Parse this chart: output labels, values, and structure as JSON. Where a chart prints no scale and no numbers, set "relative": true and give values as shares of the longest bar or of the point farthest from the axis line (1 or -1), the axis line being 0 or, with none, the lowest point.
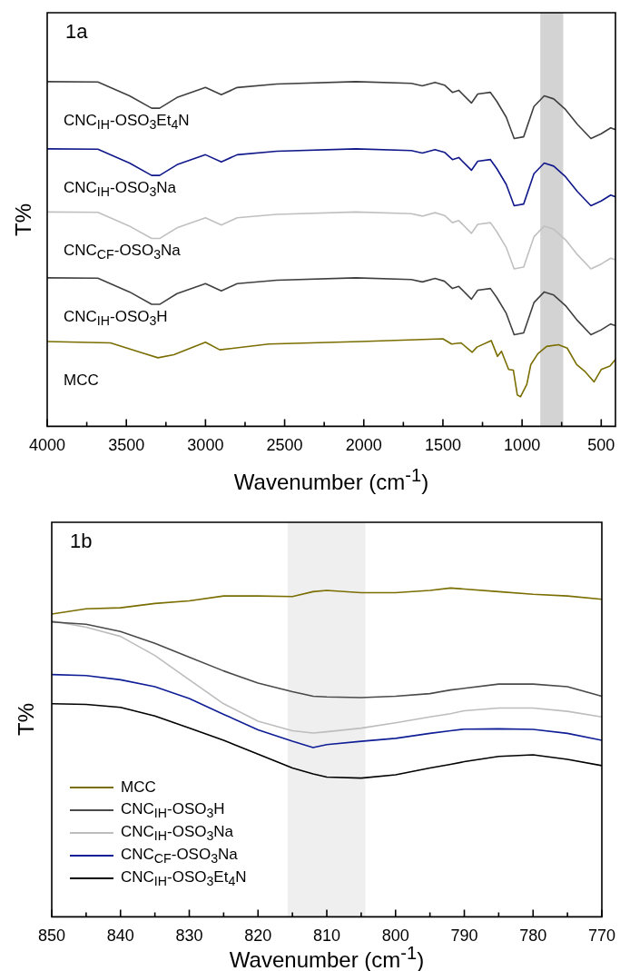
{
  "chart_data": [
    {
      "type": "line",
      "title": "1a",
      "xlabel": "Wavenumber (cm$^{-1}$)",
      "ylabel": "T%",
      "relative": true,
      "legend": false,
      "xlim": [
        4000,
        410
      ],
      "xticks": [
        4000,
        {
          "value": 3750,
          "label": null
        },
        3500,
        {
          "value": 3250,
          "label": null
        },
        3000,
        {
          "value": 2750,
          "label": null
        },
        2500,
        {
          "value": 2250,
          "label": null
        },
        2000,
        {
          "value": 1750,
          "label": null
        },
        1500,
        {
          "value": 1250,
          "label": null
        },
        1000,
        {
          "value": 750,
          "label": null
        },
        500
      ],
      "bands": [
        {
          "axis": "x",
          "from": 885,
          "to": 740,
          "color": "#d3d3d3"
        }
      ],
      "series": [
        {
          "name": "CNC$_{IH}$-OSO$_{3}$Et$_{4}$N",
          "color": "#404040",
          "x": [
            4000,
            3680,
            3480,
            3340,
            3290,
            3180,
            3000,
            2900,
            2800,
            2550,
            2050,
            1700,
            1630,
            1550,
            1490,
            1440,
            1400,
            1320,
            1280,
            1200,
            1160,
            1100,
            1050,
            990,
            925,
            860,
            800,
            725,
            650,
            565,
            500,
            440,
            410
          ],
          "values": [
            1.0,
            0.999,
            0.959,
            0.923,
            0.923,
            0.954,
            0.983,
            0.962,
            0.983,
            0.993,
            1.0,
            0.995,
            0.988,
            0.998,
            0.99,
            0.969,
            0.975,
            0.938,
            0.964,
            0.969,
            0.943,
            0.897,
            0.835,
            0.84,
            0.928,
            0.959,
            0.95,
            0.919,
            0.876,
            0.835,
            0.849,
            0.866,
            0.861
          ]
        },
        {
          "name": "CNC$_{IH}$-OSO$_{3}$Na",
          "color": "#10188a",
          "x": [
            4000,
            3680,
            3480,
            3340,
            3290,
            3180,
            3000,
            2900,
            2800,
            2550,
            2050,
            1700,
            1630,
            1550,
            1490,
            1440,
            1400,
            1320,
            1280,
            1200,
            1160,
            1100,
            1050,
            990,
            925,
            860,
            800,
            725,
            650,
            565,
            500,
            440,
            410
          ],
          "values": [
            0.805,
            0.804,
            0.764,
            0.728,
            0.728,
            0.759,
            0.788,
            0.767,
            0.788,
            0.798,
            0.805,
            0.8,
            0.793,
            0.803,
            0.795,
            0.774,
            0.78,
            0.743,
            0.769,
            0.774,
            0.748,
            0.702,
            0.64,
            0.645,
            0.733,
            0.764,
            0.755,
            0.724,
            0.681,
            0.64,
            0.654,
            0.671,
            0.666
          ]
        },
        {
          "name": "CNC$_{CF}$-OSO$_{3}$Na",
          "color": "#c0c0c0",
          "x": [
            4000,
            3680,
            3480,
            3340,
            3290,
            3180,
            3000,
            2900,
            2800,
            2550,
            2050,
            1700,
            1630,
            1550,
            1490,
            1440,
            1400,
            1320,
            1280,
            1200,
            1160,
            1100,
            1050,
            990,
            925,
            860,
            800,
            725,
            650,
            565,
            500,
            440,
            410
          ],
          "values": [
            0.622,
            0.621,
            0.581,
            0.545,
            0.545,
            0.576,
            0.605,
            0.584,
            0.605,
            0.615,
            0.622,
            0.617,
            0.61,
            0.62,
            0.612,
            0.591,
            0.597,
            0.56,
            0.586,
            0.591,
            0.565,
            0.519,
            0.457,
            0.462,
            0.55,
            0.581,
            0.572,
            0.541,
            0.498,
            0.457,
            0.471,
            0.488,
            0.483
          ]
        },
        {
          "name": "CNC$_{IH}$-OSO$_{3}$H",
          "color": "#404040",
          "x": [
            4000,
            3680,
            3480,
            3340,
            3290,
            3180,
            3000,
            2900,
            2800,
            2550,
            2050,
            1700,
            1630,
            1550,
            1490,
            1440,
            1400,
            1320,
            1280,
            1200,
            1160,
            1100,
            1050,
            990,
            925,
            860,
            800,
            725,
            650,
            565,
            500,
            440,
            410
          ],
          "values": [
            0.431,
            0.43,
            0.39,
            0.354,
            0.354,
            0.385,
            0.414,
            0.393,
            0.414,
            0.424,
            0.431,
            0.426,
            0.419,
            0.429,
            0.421,
            0.4,
            0.406,
            0.369,
            0.395,
            0.4,
            0.374,
            0.328,
            0.266,
            0.271,
            0.359,
            0.39,
            0.381,
            0.35,
            0.307,
            0.266,
            0.28,
            0.297,
            0.292
          ]
        },
        {
          "name": "MCC",
          "color": "#7a6e00",
          "x": [
            4000,
            3600,
            3400,
            3300,
            3200,
            3000,
            2910,
            2600,
            2020,
            1500,
            1445,
            1385,
            1315,
            1285,
            1195,
            1155,
            1130,
            1085,
            1055,
            1030,
            1010,
            970,
            945,
            900,
            845,
            770,
            715,
            655,
            600,
            545,
            500,
            445,
            410
          ],
          "values": [
            0.246,
            0.242,
            0.213,
            0.199,
            0.208,
            0.244,
            0.222,
            0.239,
            0.246,
            0.254,
            0.239,
            0.242,
            0.215,
            0.23,
            0.249,
            0.203,
            0.218,
            0.165,
            0.163,
            0.091,
            0.086,
            0.122,
            0.179,
            0.211,
            0.232,
            0.237,
            0.227,
            0.179,
            0.158,
            0.129,
            0.165,
            0.175,
            0.194
          ]
        }
      ]
    },
    {
      "type": "line",
      "title": "1b",
      "xlabel": "Wavenumber (cm$^{-1}$)",
      "ylabel": "T%",
      "relative": true,
      "legend": "bottom left",
      "xlim": [
        850,
        770
      ],
      "xticks": [
        850,
        {
          "value": 845,
          "label": null
        },
        840,
        {
          "value": 835,
          "label": null
        },
        830,
        {
          "value": 825,
          "label": null
        },
        820,
        {
          "value": 815,
          "label": null
        },
        810,
        {
          "value": 805,
          "label": null
        },
        800,
        {
          "value": 795,
          "label": null
        },
        790,
        {
          "value": 785,
          "label": null
        },
        780,
        {
          "value": 775,
          "label": null
        },
        770
      ],
      "bands": [
        {
          "axis": "x",
          "from": 815.7,
          "to": 804.4,
          "color": "#efefef"
        }
      ],
      "series": [
        {
          "name": "MCC",
          "color": "#7a6e00",
          "x": [
            850,
            845,
            840,
            835,
            830,
            825,
            820,
            815,
            812,
            810,
            805,
            800,
            795,
            792,
            790,
            785,
            780,
            775,
            770
          ],
          "values": [
            0.921,
            0.937,
            0.94,
            0.953,
            0.961,
            0.976,
            0.976,
            0.974,
            0.989,
            0.993,
            0.986,
            0.986,
            0.993,
            1.0,
            0.997,
            0.989,
            0.981,
            0.976,
            0.966
          ]
        },
        {
          "name": "CNC$_{IH}$-OSO$_{3}$H",
          "color": "#4a4a4a",
          "x": [
            850,
            845,
            840,
            835,
            830,
            825,
            820,
            815,
            812,
            810,
            805,
            800,
            795,
            792,
            790,
            785,
            780,
            775,
            770
          ],
          "values": [
            0.897,
            0.89,
            0.868,
            0.832,
            0.79,
            0.748,
            0.711,
            0.685,
            0.671,
            0.669,
            0.667,
            0.671,
            0.679,
            0.69,
            0.695,
            0.708,
            0.708,
            0.7,
            0.671
          ]
        },
        {
          "name": "CNC$_{IH}$-OSO$_{3}$Na",
          "color": "#bdbdbd",
          "x": [
            850,
            845,
            840,
            835,
            830,
            825,
            820,
            815,
            812,
            810,
            805,
            800,
            795,
            792,
            790,
            785,
            780,
            775,
            770
          ],
          "values": [
            0.9,
            0.881,
            0.853,
            0.795,
            0.721,
            0.648,
            0.595,
            0.566,
            0.559,
            0.563,
            0.574,
            0.59,
            0.608,
            0.618,
            0.627,
            0.635,
            0.635,
            0.625,
            0.608
          ]
        },
        {
          "name": "CNC$_{CF}$-OSO$_{3}$Na",
          "color": "#0f1e96",
          "x": [
            850,
            845,
            840,
            835,
            830,
            825,
            820,
            815,
            812,
            810,
            805,
            800,
            795,
            792,
            790,
            785,
            780,
            775,
            770
          ],
          "values": [
            0.737,
            0.734,
            0.721,
            0.7,
            0.664,
            0.616,
            0.569,
            0.534,
            0.515,
            0.524,
            0.534,
            0.543,
            0.558,
            0.566,
            0.571,
            0.572,
            0.57,
            0.558,
            0.537
          ]
        },
        {
          "name": "CNC$_{IH}$-OSO$_{3}$Et$_{4}$N",
          "color": "#000000",
          "x": [
            850,
            845,
            840,
            835,
            830,
            825,
            820,
            815,
            812,
            810,
            805,
            800,
            795,
            792,
            790,
            785,
            780,
            775,
            770
          ],
          "values": [
            0.648,
            0.646,
            0.637,
            0.611,
            0.574,
            0.537,
            0.495,
            0.453,
            0.435,
            0.425,
            0.422,
            0.432,
            0.453,
            0.464,
            0.472,
            0.488,
            0.493,
            0.479,
            0.46
          ]
        }
      ]
    }
  ]
}
